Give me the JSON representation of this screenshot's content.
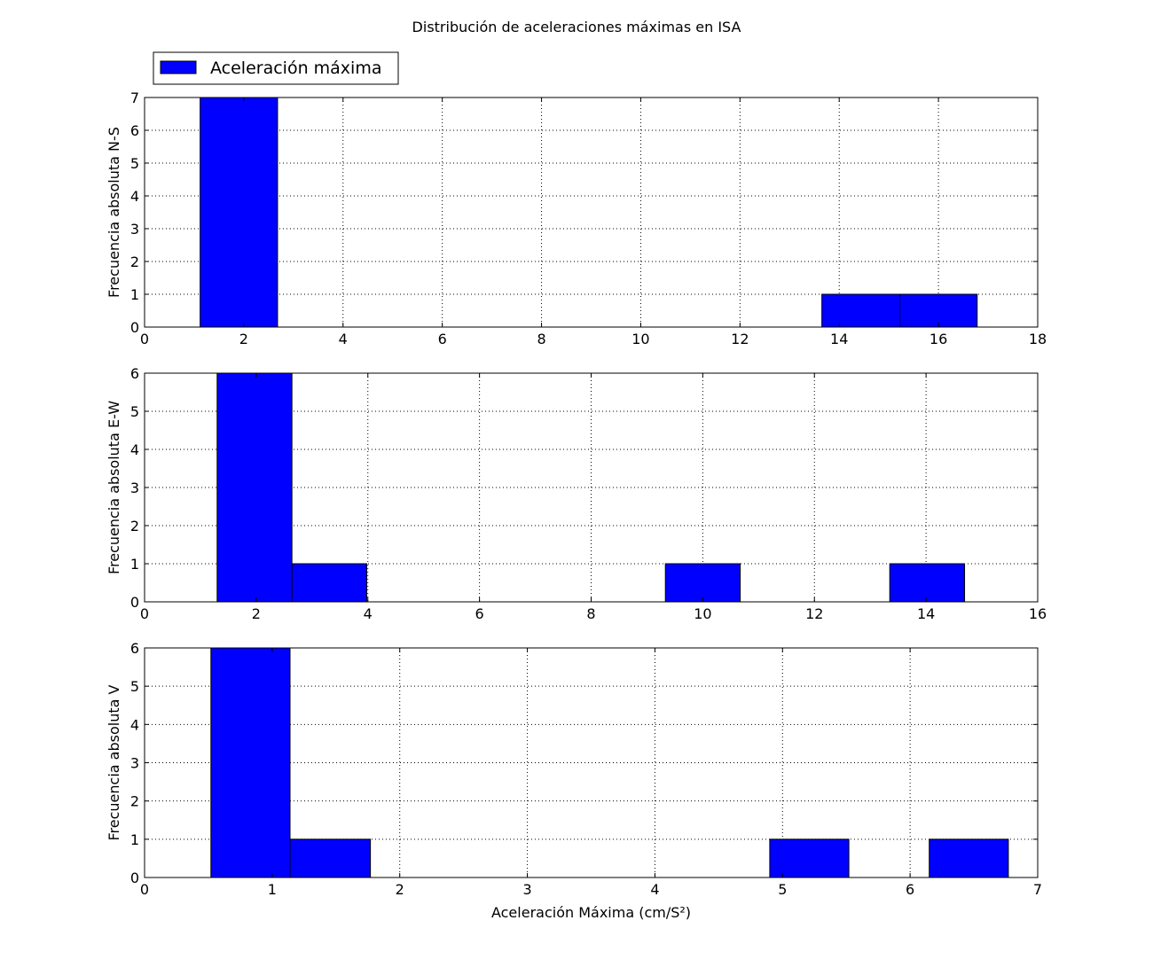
{
  "figure": {
    "title": "Distribución de aceleraciones máximas en ISA",
    "legend_label": "Aceleración máxima",
    "legend_position": "upper-left"
  },
  "style": {
    "bar_color": "#0000ff",
    "edge_color": "#000000",
    "grid_color": "#000000"
  },
  "chart_data": [
    {
      "type": "bar",
      "title": "",
      "xlabel": "",
      "ylabel": "Frecuencia absoluta N-S",
      "xlim": [
        0,
        18
      ],
      "ylim": [
        0,
        7
      ],
      "xticks": [
        0,
        2,
        4,
        6,
        8,
        10,
        12,
        14,
        16,
        18
      ],
      "yticks": [
        0,
        1,
        2,
        3,
        4,
        5,
        6,
        7
      ],
      "grid": true,
      "series": [
        {
          "name": "Aceleración máxima",
          "bars": [
            {
              "x0": 1.12,
              "x1": 2.68,
              "value": 7
            },
            {
              "x0": 13.65,
              "x1": 15.22,
              "value": 1
            },
            {
              "x0": 15.22,
              "x1": 16.78,
              "value": 1
            }
          ]
        }
      ]
    },
    {
      "type": "bar",
      "title": "",
      "xlabel": "",
      "ylabel": "Frecuencia absoluta E-W",
      "xlim": [
        0,
        16
      ],
      "ylim": [
        0,
        6
      ],
      "xticks": [
        0,
        2,
        4,
        6,
        8,
        10,
        12,
        14,
        16
      ],
      "yticks": [
        0,
        1,
        2,
        3,
        4,
        5,
        6
      ],
      "grid": true,
      "series": [
        {
          "name": "",
          "bars": [
            {
              "x0": 1.3,
              "x1": 2.64,
              "value": 6
            },
            {
              "x0": 2.64,
              "x1": 3.98,
              "value": 1
            },
            {
              "x0": 9.33,
              "x1": 10.67,
              "value": 1
            },
            {
              "x0": 13.35,
              "x1": 14.69,
              "value": 1
            }
          ]
        }
      ]
    },
    {
      "type": "bar",
      "title": "",
      "xlabel": "Aceleración Máxima (cm/S²)",
      "ylabel": "Frecuencia absoluta V",
      "xlim": [
        0,
        7
      ],
      "ylim": [
        0,
        6
      ],
      "xticks": [
        0,
        1,
        2,
        3,
        4,
        5,
        6,
        7
      ],
      "yticks": [
        0,
        1,
        2,
        3,
        4,
        5,
        6
      ],
      "grid": true,
      "series": [
        {
          "name": "",
          "bars": [
            {
              "x0": 0.52,
              "x1": 1.14,
              "value": 6
            },
            {
              "x0": 1.14,
              "x1": 1.77,
              "value": 1
            },
            {
              "x0": 4.9,
              "x1": 5.52,
              "value": 1
            },
            {
              "x0": 6.15,
              "x1": 6.77,
              "value": 1
            }
          ]
        }
      ]
    }
  ]
}
